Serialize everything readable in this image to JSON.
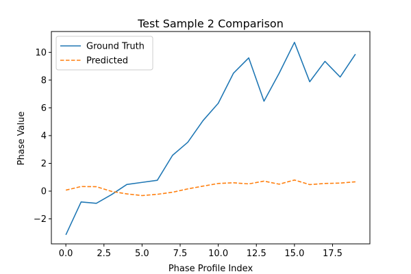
{
  "chart_data": {
    "type": "line",
    "title": "Test Sample 2 Comparison",
    "xlabel": "Phase Profile Index",
    "ylabel": "Phase Value",
    "xlim": [
      -0.95,
      19.95
    ],
    "ylim": [
      -3.8,
      11.5
    ],
    "xticks": [
      0.0,
      2.5,
      5.0,
      7.5,
      10.0,
      12.5,
      15.0,
      17.5
    ],
    "xtick_labels": [
      "0.0",
      "2.5",
      "5.0",
      "7.5",
      "10.0",
      "12.5",
      "15.0",
      "17.5"
    ],
    "yticks": [
      -2,
      0,
      2,
      4,
      6,
      8,
      10
    ],
    "ytick_labels": [
      "−2",
      "0",
      "2",
      "4",
      "6",
      "8",
      "10"
    ],
    "grid": false,
    "legend": "top-left",
    "x": [
      0,
      1,
      2,
      3,
      4,
      5,
      6,
      7,
      8,
      9,
      10,
      11,
      12,
      13,
      14,
      15,
      16,
      17,
      18,
      19
    ],
    "series": [
      {
        "name": "Ground Truth",
        "color": "#1f77b4",
        "style": "solid",
        "values": [
          -3.15,
          -0.78,
          -0.88,
          -0.25,
          0.48,
          0.63,
          0.78,
          2.58,
          3.52,
          5.08,
          6.33,
          8.5,
          9.6,
          6.48,
          8.5,
          10.72,
          7.88,
          9.35,
          8.22,
          9.87
        ]
      },
      {
        "name": "Predicted",
        "color": "#ff7f0e",
        "style": "dashed",
        "values": [
          0.07,
          0.33,
          0.32,
          -0.02,
          -0.2,
          -0.32,
          -0.23,
          -0.08,
          0.16,
          0.36,
          0.55,
          0.6,
          0.52,
          0.72,
          0.5,
          0.8,
          0.47,
          0.55,
          0.58,
          0.67
        ]
      }
    ]
  }
}
